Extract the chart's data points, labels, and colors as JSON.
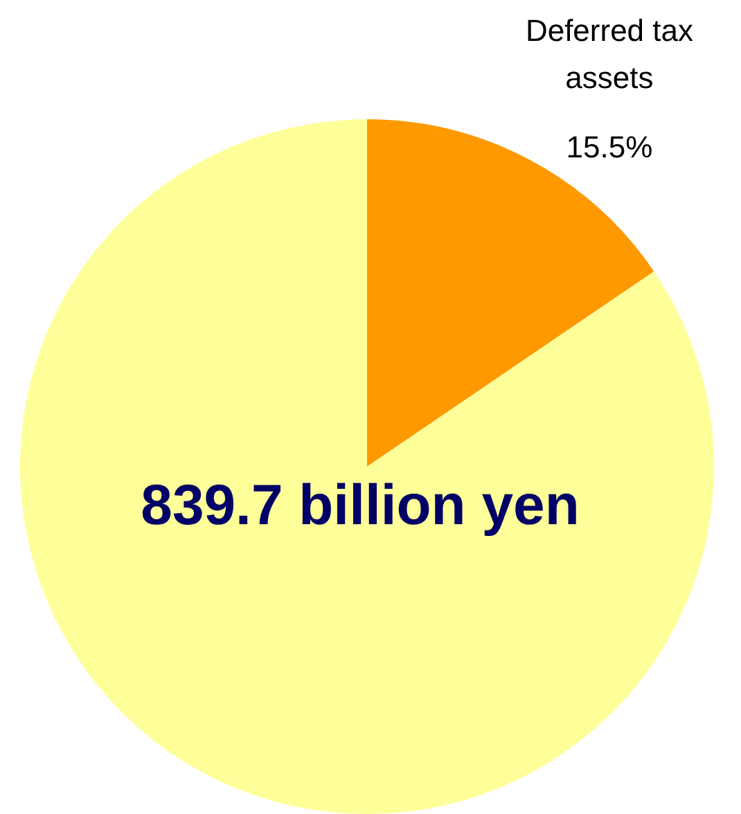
{
  "chart_data": {
    "type": "pie",
    "categories": [
      "Deferred tax assets",
      null
    ],
    "values": [
      15.5,
      84.5
    ],
    "colors": [
      "#ff9900",
      "#ffff99"
    ],
    "value_labels": [
      "15.5%",
      null
    ],
    "annotations": [
      "839.7 billion yen"
    ],
    "legend": false
  }
}
